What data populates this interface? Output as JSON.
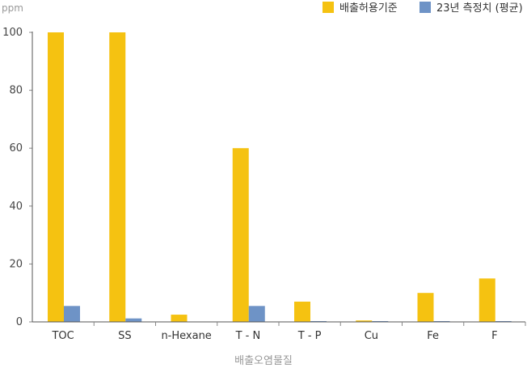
{
  "chart_data": {
    "type": "bar",
    "unit": "ppm",
    "xlabel": "배출오염물질",
    "ylabel": "",
    "ylim": [
      0,
      100
    ],
    "yticks": [
      0,
      20,
      40,
      60,
      80,
      100
    ],
    "grid": false,
    "legend_position": "top-right",
    "categories": [
      "TOC",
      "SS",
      "n-Hexane",
      "T - N",
      "T - P",
      "Cu",
      "Fe",
      "F"
    ],
    "series": [
      {
        "name": "배출허용기준",
        "color": "#F5C211",
        "values": [
          100,
          100,
          2.5,
          60,
          7,
          0.5,
          10,
          15
        ]
      },
      {
        "name": "23년 측정치 (평균)",
        "color": "#6E93C6",
        "values": [
          5.5,
          1.2,
          0,
          5.5,
          0.2,
          0.1,
          0.2,
          0.2
        ]
      }
    ]
  }
}
